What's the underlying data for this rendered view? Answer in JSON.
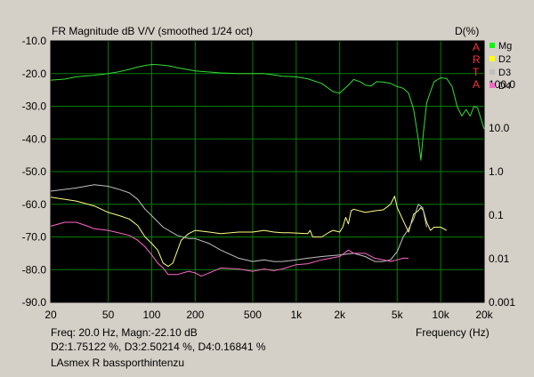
{
  "chart_data": {
    "type": "line",
    "title": "FR Magnitude dB V/V (smoothed 1/24 oct)",
    "y2_title": "D(%)",
    "xlabel": "Frequency (Hz)",
    "x_scale": "log",
    "xlim": [
      20,
      20000
    ],
    "ylim": [
      -90,
      -10
    ],
    "y2lim": [
      0.001,
      1000
    ],
    "y2_scale": "log",
    "x_ticks": [
      20,
      50,
      100,
      200,
      500,
      1000,
      2000,
      5000,
      10000,
      20000
    ],
    "x_tick_labels": [
      "20",
      "50",
      "100",
      "200",
      "500",
      "1k",
      "2k",
      "5k",
      "10k",
      "20k"
    ],
    "y_ticks": [
      -10,
      -20,
      -30,
      -40,
      -50,
      -60,
      -70,
      -80,
      -90
    ],
    "y_tick_labels": [
      "-10.0",
      "-20.0",
      "-30.0",
      "-40.0",
      "-50.0",
      "-60.0",
      "-70.0",
      "-80.0",
      "-90.0"
    ],
    "y2_ticks": [
      100,
      10,
      1,
      0.1,
      0.01,
      0.001
    ],
    "y2_tick_labels": [
      "100.0",
      "10.0",
      "1.0",
      "0.1",
      "0.01",
      "0.001"
    ],
    "grid": true,
    "legend_position": "top-right",
    "series": [
      {
        "name": "Mg",
        "color": "#33dd33",
        "x": [
          20,
          25,
          30,
          40,
          50,
          60,
          70,
          80,
          90,
          100,
          110,
          130,
          150,
          200,
          300,
          400,
          500,
          600,
          700,
          800,
          1000,
          1200,
          1500,
          1800,
          2000,
          2300,
          2500,
          2800,
          3000,
          3300,
          3600,
          4000,
          4500,
          5000,
          5500,
          6000,
          6500,
          7000,
          7300,
          7600,
          8000,
          8500,
          9000,
          10000,
          11000,
          12000,
          13000,
          14000,
          15000,
          16000,
          17000,
          18000,
          20000
        ],
        "y": [
          -22,
          -21.7,
          -21,
          -20.5,
          -20,
          -19.4,
          -18.7,
          -18,
          -17.5,
          -17.2,
          -17.3,
          -17.6,
          -18.2,
          -19.2,
          -19.8,
          -20,
          -20,
          -20,
          -20.4,
          -20.8,
          -21,
          -21.6,
          -23,
          -25.5,
          -26,
          -23.5,
          -21.8,
          -22.6,
          -23.5,
          -23.8,
          -22.5,
          -22.6,
          -23,
          -24,
          -24.5,
          -26,
          -31,
          -40,
          -46.5,
          -38,
          -29,
          -25.5,
          -22.5,
          -21.3,
          -21.5,
          -24,
          -30,
          -33,
          -31,
          -33,
          -30,
          -30.5,
          -37
        ]
      },
      {
        "name": "D2",
        "color": "#ffff80",
        "x": [
          20,
          30,
          40,
          50,
          60,
          70,
          80,
          90,
          100,
          110,
          120,
          130,
          140,
          160,
          180,
          200,
          250,
          300,
          400,
          500,
          600,
          700,
          800,
          900,
          1000,
          1100,
          1200,
          1250,
          1300,
          1500,
          1700,
          1800,
          2000,
          2100,
          2200,
          2300,
          2400,
          2500,
          3000,
          3500,
          4000,
          4500,
          4800,
          5000,
          5500,
          6000,
          6500,
          7000,
          7300,
          7600,
          8000,
          8500,
          9000,
          10000,
          11000
        ],
        "y": [
          -57.8,
          -59,
          -60.5,
          -62.5,
          -63.5,
          -64.5,
          -66.5,
          -70,
          -72,
          -74,
          -78,
          -79,
          -78,
          -71,
          -69,
          -68,
          -68.5,
          -69,
          -68.5,
          -68.5,
          -68,
          -68.5,
          -68.7,
          -68.7,
          -68.8,
          -68.9,
          -69,
          -68,
          -70,
          -70,
          -68.5,
          -68,
          -68.5,
          -67,
          -64,
          -66,
          -62,
          -61.5,
          -62.5,
          -62,
          -61.7,
          -60,
          -57.5,
          -61,
          -65,
          -68.5,
          -63,
          -62,
          -61,
          -62,
          -65.5,
          -68,
          -67,
          -67,
          -68
        ]
      },
      {
        "name": "D3",
        "color": "#c0c0c0",
        "x": [
          20,
          30,
          40,
          50,
          60,
          70,
          80,
          90,
          100,
          120,
          150,
          180,
          200,
          250,
          300,
          400,
          500,
          600,
          700,
          800,
          900,
          1000,
          1200,
          1500,
          2000,
          2500,
          3000,
          3500,
          4000,
          4500,
          5000,
          5500,
          6000,
          6500,
          7000,
          7500,
          8000
        ],
        "y": [
          -56,
          -55,
          -54,
          -54.5,
          -55.5,
          -56.5,
          -58.5,
          -61.5,
          -63.5,
          -67,
          -69.5,
          -70.5,
          -70.5,
          -72,
          -74,
          -76.5,
          -77.5,
          -77,
          -77.5,
          -77.5,
          -77.3,
          -77,
          -76.5,
          -76,
          -75.5,
          -75,
          -76,
          -77.5,
          -77.5,
          -77,
          -74.5,
          -70,
          -67.5,
          -64.5,
          -60,
          -61,
          -67
        ]
      },
      {
        "name": "D4",
        "color": "#ff66cc",
        "x": [
          20,
          25,
          30,
          35,
          40,
          50,
          60,
          70,
          80,
          90,
          100,
          110,
          120,
          130,
          150,
          180,
          200,
          220,
          250,
          300,
          400,
          500,
          600,
          700,
          800,
          1000,
          1200,
          1500,
          2000,
          2300,
          2500,
          3000,
          3500,
          4000,
          4500,
          5000,
          5500,
          6000
        ],
        "y": [
          -66.7,
          -65.5,
          -65.5,
          -66.5,
          -67.5,
          -68,
          -68.8,
          -69.5,
          -71,
          -73,
          -75.5,
          -78,
          -79.5,
          -81.5,
          -81.5,
          -80.5,
          -81,
          -82,
          -81,
          -79.5,
          -79.8,
          -80.5,
          -79.8,
          -80.3,
          -79.8,
          -78.5,
          -78.2,
          -77,
          -76,
          -74,
          -75,
          -75,
          -76.5,
          -77,
          -77.5,
          -77,
          -76.5,
          -76.5
        ]
      }
    ]
  },
  "watermark_letters": [
    "A",
    "R",
    "T",
    "A"
  ],
  "legend": [
    {
      "label": "Mg",
      "color": "#00ff00"
    },
    {
      "label": "D2",
      "color": "#ffff00"
    },
    {
      "label": "D3",
      "color": "#c0c0c0"
    },
    {
      "label": "D4",
      "color": "#ff66cc"
    }
  ],
  "info": {
    "line1": "Freq: 20.0 Hz, Magn:-22.10 dB",
    "line2": "D2:1.75122 %, D3:2.50214 %, D4:0.16841 %",
    "line3": "LAsmex R bassporthintenzu"
  },
  "colors": {
    "background": "#d4d0c8",
    "plot_bg": "#000000",
    "grid": "#008000",
    "watermark": "#ff3333"
  }
}
